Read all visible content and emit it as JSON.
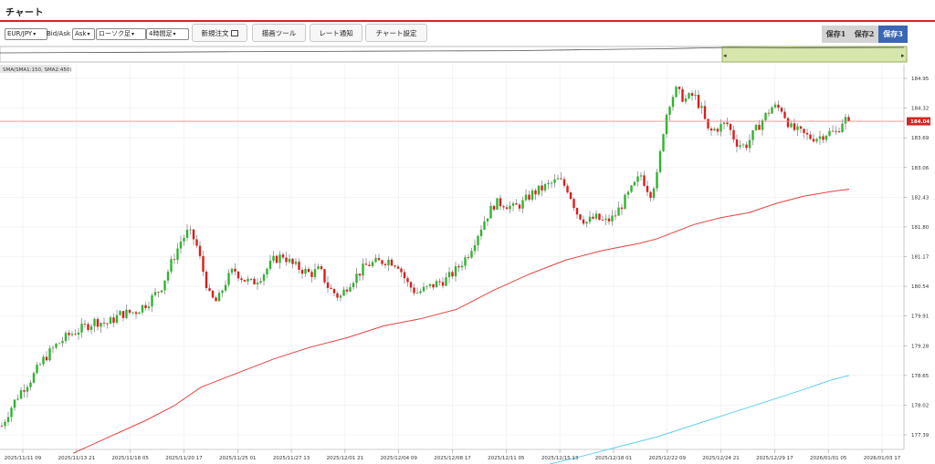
{
  "header": {
    "title": "チャート"
  },
  "toolbar": {
    "symbol": "EUR/JPY",
    "bidask_label": "Bid/Ask",
    "price_type": "Ask",
    "chart_type": "ローソク足",
    "timeframe": "4時間足",
    "new_order_label": "新規注文",
    "drawing_tools_label": "描画ツール",
    "rate_alert_label": "レート通知",
    "chart_settings_label": "チャート設定",
    "saves": [
      {
        "label": "保存1",
        "active": false
      },
      {
        "label": "保存2",
        "active": false
      },
      {
        "label": "保存3",
        "active": true
      }
    ]
  },
  "navigator": {
    "left_arrow": "◂",
    "right_arrow": "▸"
  },
  "indicator": {
    "label": "SMA(SMA1:150, SMA2:450)"
  },
  "colors": {
    "accent_red": "#d62424",
    "candle_up": "#2db52d",
    "candle_down": "#e01b1b",
    "sma1": "#e8423e",
    "sma2": "#5fd0e8",
    "price_line": "#f08a8a",
    "navigator_range": "#d6e6ac"
  },
  "chart_data": {
    "type": "candlestick",
    "symbol": "EUR/JPY",
    "timeframe": "4時間足",
    "current_price": "184.04",
    "y_ticks": [
      "184.95",
      "184.32",
      "183.69",
      "183.06",
      "182.43",
      "181.80",
      "181.17",
      "180.54",
      "179.91",
      "179.28",
      "178.65",
      "178.02",
      "177.39"
    ],
    "ylim": [
      176.76,
      185.05
    ],
    "x_ticks": [
      "2025/11/11 09",
      "2025/11/13 21",
      "2025/11/18 05",
      "2025/11/20 17",
      "2025/11/25 01",
      "2025/11/27 13",
      "2025/12/01 21",
      "2025/12/04 09",
      "2025/12/08 17",
      "2025/12/11 05",
      "2025/12/15 13",
      "2025/12/18 01",
      "2025/12/22 09",
      "2025/12/24 21",
      "2025/12/29 17",
      "2026/01/01 05",
      "2026/01/03 17"
    ],
    "close_path": [
      [
        0,
        177.5
      ],
      [
        10,
        177.9
      ],
      [
        22,
        178.3
      ],
      [
        35,
        178.6
      ],
      [
        48,
        179.0
      ],
      [
        62,
        179.3
      ],
      [
        75,
        179.5
      ],
      [
        90,
        179.65
      ],
      [
        104,
        179.8
      ],
      [
        118,
        179.75
      ],
      [
        132,
        179.95
      ],
      [
        148,
        180.0
      ],
      [
        162,
        180.2
      ],
      [
        176,
        180.5
      ],
      [
        188,
        181.05
      ],
      [
        198,
        181.5
      ],
      [
        206,
        181.7
      ],
      [
        214,
        181.5
      ],
      [
        222,
        180.9
      ],
      [
        230,
        180.3
      ],
      [
        238,
        180.2
      ],
      [
        246,
        180.6
      ],
      [
        256,
        180.9
      ],
      [
        266,
        180.7
      ],
      [
        276,
        180.6
      ],
      [
        288,
        180.8
      ],
      [
        300,
        181.1
      ],
      [
        310,
        181.2
      ],
      [
        320,
        181.0
      ],
      [
        330,
        180.9
      ],
      [
        340,
        180.8
      ],
      [
        350,
        180.9
      ],
      [
        360,
        180.5
      ],
      [
        372,
        180.3
      ],
      [
        382,
        180.6
      ],
      [
        392,
        180.8
      ],
      [
        402,
        181.0
      ],
      [
        414,
        181.05
      ],
      [
        426,
        181.1
      ],
      [
        436,
        181.0
      ],
      [
        446,
        180.6
      ],
      [
        456,
        180.4
      ],
      [
        468,
        180.5
      ],
      [
        478,
        180.6
      ],
      [
        490,
        180.7
      ],
      [
        500,
        180.9
      ],
      [
        512,
        181.2
      ],
      [
        522,
        181.6
      ],
      [
        532,
        182.0
      ],
      [
        542,
        182.3
      ],
      [
        552,
        182.3
      ],
      [
        562,
        182.2
      ],
      [
        572,
        182.3
      ],
      [
        582,
        182.5
      ],
      [
        592,
        182.6
      ],
      [
        602,
        182.7
      ],
      [
        612,
        182.8
      ],
      [
        622,
        182.6
      ],
      [
        632,
        182.1
      ],
      [
        642,
        181.9
      ],
      [
        652,
        182.0
      ],
      [
        662,
        181.9
      ],
      [
        672,
        182.0
      ],
      [
        682,
        182.3
      ],
      [
        692,
        182.6
      ],
      [
        702,
        182.9
      ],
      [
        712,
        182.5
      ],
      [
        720,
        182.9
      ],
      [
        726,
        183.8
      ],
      [
        732,
        184.4
      ],
      [
        740,
        184.7
      ],
      [
        750,
        184.5
      ],
      [
        760,
        184.6
      ],
      [
        768,
        184.3
      ],
      [
        776,
        183.8
      ],
      [
        786,
        183.9
      ],
      [
        796,
        184.0
      ],
      [
        806,
        183.6
      ],
      [
        816,
        183.5
      ],
      [
        826,
        183.8
      ],
      [
        836,
        184.1
      ],
      [
        846,
        184.35
      ],
      [
        856,
        184.3
      ],
      [
        866,
        183.9
      ],
      [
        876,
        183.8
      ],
      [
        886,
        183.7
      ],
      [
        896,
        183.7
      ],
      [
        906,
        183.8
      ],
      [
        916,
        183.8
      ],
      [
        924,
        184.1
      ],
      [
        930,
        184.04
      ]
    ],
    "sma1_path": [
      [
        80,
        177.0
      ],
      [
        120,
        177.35
      ],
      [
        160,
        177.7
      ],
      [
        190,
        178.0
      ],
      [
        220,
        178.4
      ],
      [
        260,
        178.7
      ],
      [
        300,
        179.0
      ],
      [
        340,
        179.25
      ],
      [
        380,
        179.45
      ],
      [
        420,
        179.7
      ],
      [
        460,
        179.85
      ],
      [
        500,
        180.05
      ],
      [
        540,
        180.45
      ],
      [
        580,
        180.8
      ],
      [
        620,
        181.1
      ],
      [
        660,
        181.3
      ],
      [
        700,
        181.45
      ],
      [
        720,
        181.55
      ],
      [
        760,
        181.85
      ],
      [
        790,
        182.0
      ],
      [
        820,
        182.1
      ],
      [
        850,
        182.3
      ],
      [
        880,
        182.45
      ],
      [
        910,
        182.55
      ],
      [
        930,
        182.6
      ]
    ],
    "sma2_path": [
      [
        600,
        176.76
      ],
      [
        640,
        176.95
      ],
      [
        680,
        177.15
      ],
      [
        720,
        177.35
      ],
      [
        760,
        177.6
      ],
      [
        800,
        177.85
      ],
      [
        840,
        178.1
      ],
      [
        880,
        178.35
      ],
      [
        910,
        178.55
      ],
      [
        930,
        178.65
      ]
    ],
    "navigator_price_path": [
      [
        0,
        7.0
      ],
      [
        80,
        6.6
      ],
      [
        160,
        6.3
      ],
      [
        240,
        5.8
      ],
      [
        320,
        5.5
      ],
      [
        400,
        5.2
      ],
      [
        480,
        4.9
      ],
      [
        560,
        4.6
      ],
      [
        620,
        3.8
      ],
      [
        680,
        3.0
      ],
      [
        720,
        2.6
      ],
      [
        760,
        1.8
      ],
      [
        800,
        1.0
      ],
      [
        860,
        1.4
      ],
      [
        930,
        1.2
      ],
      [
        990,
        1.0
      ]
    ]
  }
}
